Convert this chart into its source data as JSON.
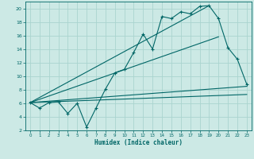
{
  "xlabel": "Humidex (Indice chaleur)",
  "bg_color": "#cce9e5",
  "grid_color": "#aad4cf",
  "line_color": "#006666",
  "x_main": [
    0,
    1,
    2,
    3,
    4,
    5,
    6,
    7,
    8,
    9,
    10,
    11,
    12,
    13,
    14,
    15,
    16,
    17,
    18,
    19,
    20,
    21,
    22,
    23
  ],
  "y_main": [
    6.1,
    5.3,
    6.1,
    6.2,
    4.5,
    6.0,
    2.5,
    5.3,
    8.1,
    10.5,
    11.0,
    13.5,
    16.2,
    14.0,
    18.8,
    18.5,
    19.5,
    19.2,
    20.3,
    20.4,
    18.5,
    14.2,
    12.5,
    8.8
  ],
  "ylim": [
    2,
    21
  ],
  "yticks": [
    2,
    4,
    6,
    8,
    10,
    12,
    14,
    16,
    18,
    20
  ],
  "xticks": [
    0,
    1,
    2,
    3,
    4,
    5,
    6,
    7,
    8,
    9,
    10,
    11,
    12,
    13,
    14,
    15,
    16,
    17,
    18,
    19,
    20,
    21,
    22,
    23
  ],
  "line1_x": [
    0,
    19
  ],
  "line1_y": [
    6.1,
    20.4
  ],
  "line2_x": [
    0,
    20
  ],
  "line2_y": [
    6.1,
    15.8
  ],
  "line3_x": [
    0,
    23
  ],
  "line3_y": [
    6.1,
    7.3
  ],
  "line4_x": [
    0,
    23
  ],
  "line4_y": [
    6.1,
    8.5
  ]
}
